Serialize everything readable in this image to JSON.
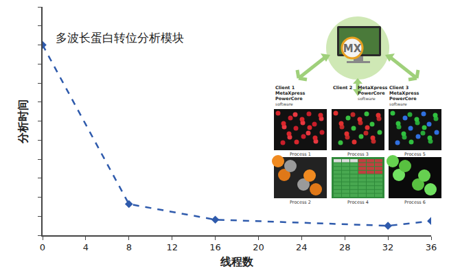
{
  "chart_data": {
    "type": "line",
    "annotation": "多波长蛋白转位分析模块",
    "x_label": "线程数",
    "y_label": "分析时间",
    "x": [
      0,
      8,
      16,
      32,
      36
    ],
    "series": [
      {
        "color": "#2e5aac",
        "values": [
          10.0,
          1.64,
          0.82,
          0.5,
          0.75
        ],
        "marker": "diamond",
        "line_style": "dash"
      }
    ],
    "xlim": [
      0,
      36
    ],
    "xticks": [
      0,
      4,
      8,
      12,
      16,
      20,
      24,
      28,
      32,
      36
    ],
    "ylim": [
      0,
      12
    ],
    "yticks": [
      0,
      1,
      2,
      3,
      4,
      5,
      6,
      7,
      8,
      9,
      10,
      11,
      12
    ],
    "tick_labels": "x",
    "grid": false,
    "inset": {
      "center": "MX",
      "clients": [
        {
          "label": "Client 1",
          "product": "MetaXpress PowerCore",
          "sub": "software"
        },
        {
          "label": "Client 2",
          "product": "MetaXpress PowerCore",
          "sub": "software"
        },
        {
          "label": "Client 3",
          "product": "MetaXpress PowerCore",
          "sub": "software"
        }
      ],
      "processes": [
        "Process 1",
        "Process 3",
        "Process 5",
        "Process 2",
        "Process 4",
        "Process 6"
      ]
    }
  }
}
